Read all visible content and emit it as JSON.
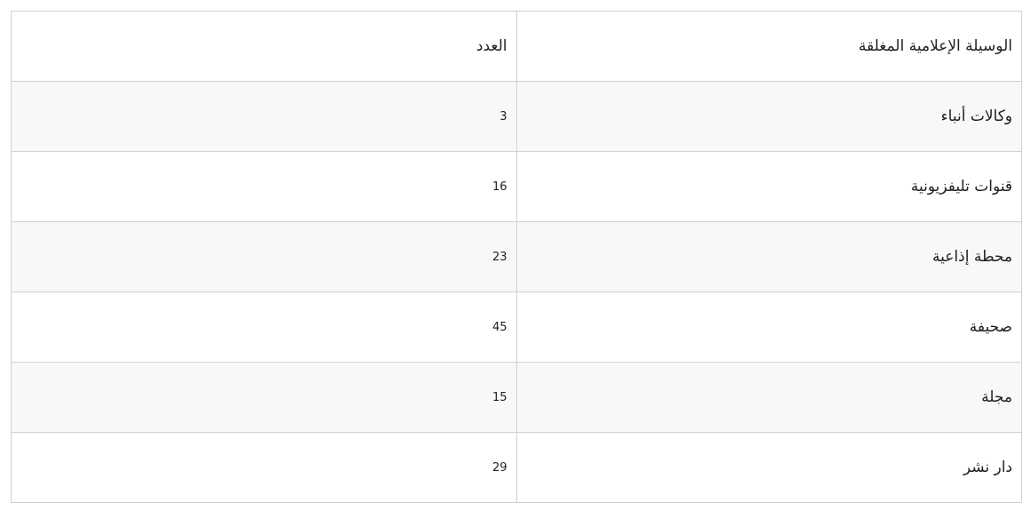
{
  "colors": {
    "border": "#d0d0d0",
    "stripe": "#f8f8f8",
    "text": "#1f1f1f",
    "background": "#ffffff"
  },
  "chart_data": {
    "type": "table",
    "direction": "rtl",
    "title": "",
    "columns": [
      "الوسيلة الإعلامية المغلقة",
      "العدد"
    ],
    "rows": [
      {
        "label": "وكالات أنباء",
        "count": "3"
      },
      {
        "label": "قنوات تليفزيونية",
        "count": "16"
      },
      {
        "label": "محطة إذاعية",
        "count": "23"
      },
      {
        "label": "صحيفة",
        "count": "45"
      },
      {
        "label": "مجلة",
        "count": "15"
      },
      {
        "label": "دار نشر",
        "count": "29"
      }
    ]
  }
}
